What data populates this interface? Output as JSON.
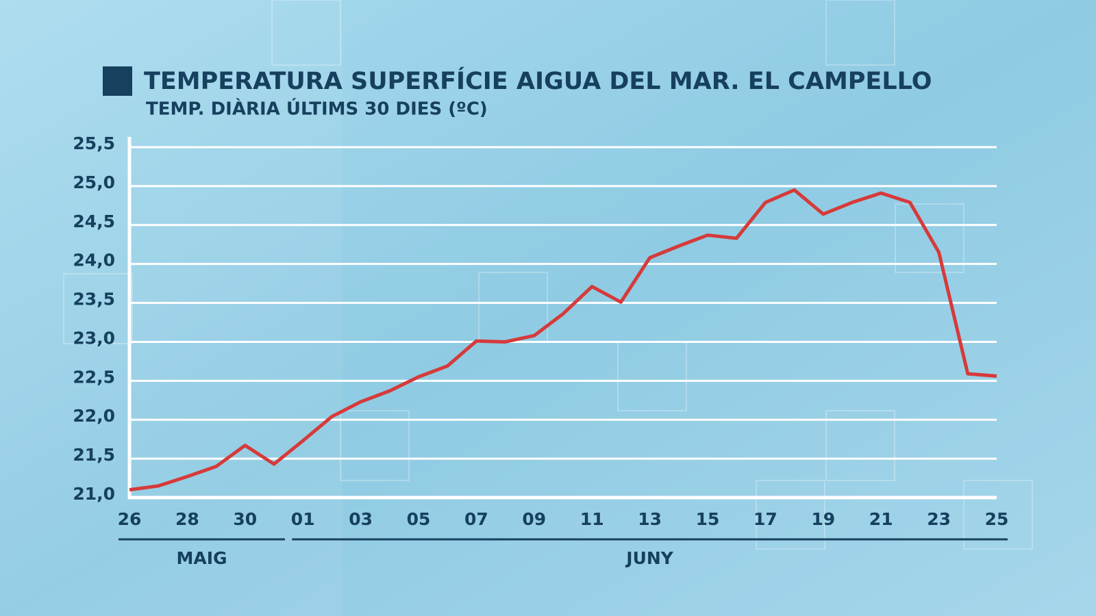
{
  "chart_data": {
    "type": "line",
    "title": "TEMPERATURA SUPERFÍCIE AIGUA DEL MAR. EL CAMPELLO",
    "subtitle": "TEMP. DIÀRIA ÚLTIMS 30 DIES (ºC)",
    "categories": [
      "26",
      null,
      "28",
      null,
      "30",
      null,
      "01",
      null,
      "03",
      null,
      "05",
      null,
      "07",
      null,
      "09",
      null,
      "11",
      null,
      "13",
      null,
      "15",
      null,
      "17",
      null,
      "19",
      null,
      "21",
      null,
      "23",
      null,
      "25"
    ],
    "month_groups": [
      {
        "label": "MAIG",
        "categories": [
          0,
          5
        ]
      },
      {
        "label": "JUNY",
        "categories": [
          6,
          30
        ]
      }
    ],
    "series": [
      {
        "name": "Temperatura",
        "color": "#d63a3a",
        "values": [
          21.1,
          21.15,
          21.27,
          21.4,
          21.67,
          21.43,
          21.73,
          22.04,
          22.23,
          22.37,
          22.55,
          22.69,
          23.01,
          23.0,
          23.08,
          23.36,
          23.71,
          23.51,
          24.08,
          24.23,
          24.37,
          24.33,
          24.79,
          24.95,
          24.64,
          24.79,
          24.91,
          24.79,
          24.15,
          22.59,
          22.56
        ]
      }
    ],
    "ylim": [
      21.0,
      25.5
    ],
    "yticks": [
      {
        "value": 21.0,
        "label": "21,0"
      },
      {
        "value": 21.5,
        "label": "21,5"
      },
      {
        "value": 22.0,
        "label": "22,0"
      },
      {
        "value": 22.5,
        "label": "22,5"
      },
      {
        "value": 23.0,
        "label": "23,0"
      },
      {
        "value": 23.5,
        "label": "23,5"
      },
      {
        "value": 24.0,
        "label": "24,0"
      },
      {
        "value": 24.5,
        "label": "24,5"
      },
      {
        "value": 25.0,
        "label": "25,0"
      },
      {
        "value": 25.5,
        "label": "25,5"
      }
    ],
    "grid": true
  }
}
